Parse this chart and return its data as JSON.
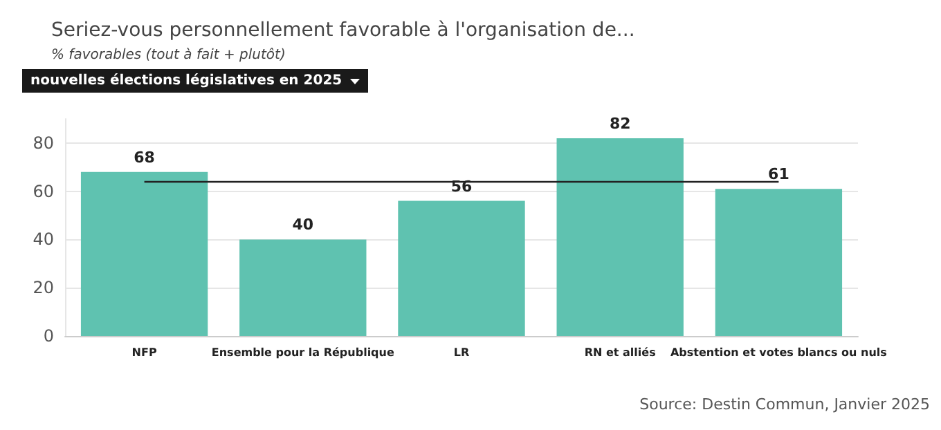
{
  "chart_data": {
    "type": "bar",
    "title": "Seriez-vous personnellement favorable à l'organisation de...",
    "subtitle": "% favorables (tout à fait + plutôt)",
    "categories": [
      "NFP",
      "Ensemble pour la République",
      "LR",
      "RN et alliés",
      "Abstention et votes blancs ou nuls"
    ],
    "values": [
      68,
      40,
      56,
      82,
      61
    ],
    "color": "#5fc2b0",
    "data_labels": true,
    "ylim": [
      0,
      90
    ],
    "yticks": [
      0,
      20,
      40,
      60,
      80
    ],
    "grid": "y",
    "ref_lines": [
      {
        "axis": "y",
        "value": 64,
        "color": "#222222",
        "line_style": "solid"
      }
    ],
    "annotations": [
      "nouvelles élections législatives en 2025",
      "Source: Destin Commun, Janvier 2025"
    ]
  }
}
